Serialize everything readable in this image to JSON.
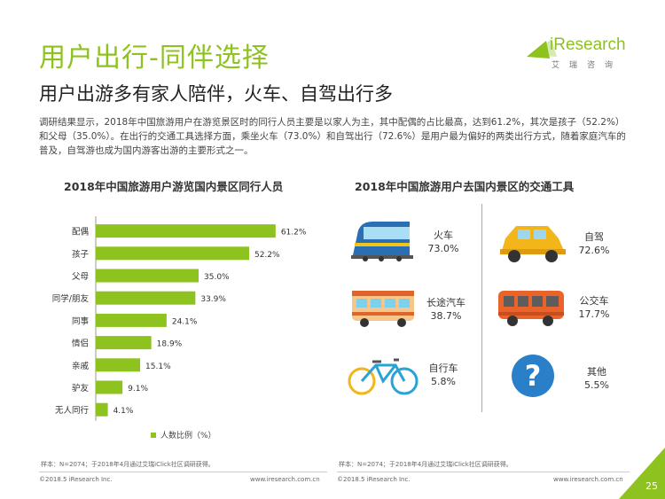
{
  "page": {
    "title": "用户出行-同伴选择",
    "subtitle": "用户出游多有家人陪伴，火车、自驾出行多",
    "intro": "调研结果显示，2018年中国旅游用户在游览景区时的同行人员主要是以家人为主，其中配偶的占比最高，达到61.2%，其次是孩子（52.2%）和父母（35.0%）。在出行的交通工具选择方面，乘坐火车（73.0%）和自驾出行（72.6%）是用户最为偏好的两类出行方式，随着家庭汽车的普及，自驾游也成为国内游客出游的主要形式之一。",
    "page_number": "25"
  },
  "logo": {
    "word": "iResearch",
    "sub": "艾瑞咨询"
  },
  "charts": {
    "left_title": "2018年中国旅游用户游览国内景区同行人员",
    "right_title": "2018年中国旅游用户去国内景区的交通工具",
    "legend_label": "人数比例（%）"
  },
  "chart_data": [
    {
      "type": "bar",
      "orientation": "horizontal",
      "title": "2018年中国旅游用户游览国内景区同行人员",
      "categories": [
        "配偶",
        "孩子",
        "父母",
        "同学/朋友",
        "同事",
        "情侣",
        "亲戚",
        "驴友",
        "无人同行"
      ],
      "values": [
        61.2,
        52.2,
        35.0,
        33.9,
        24.1,
        18.9,
        15.1,
        9.1,
        4.1
      ],
      "value_labels": [
        "61.2%",
        "52.2%",
        "35.0%",
        "33.9%",
        "24.1%",
        "18.9%",
        "15.1%",
        "9.1%",
        "4.1%"
      ],
      "series": [
        {
          "name": "人数比例（%）",
          "values": [
            61.2,
            52.2,
            35.0,
            33.9,
            24.1,
            18.9,
            15.1,
            9.1,
            4.1
          ]
        }
      ],
      "xlim": [
        0,
        70
      ],
      "grid": false,
      "legend": "bottom",
      "color": "#8dc21f"
    },
    {
      "type": "table",
      "title": "2018年中国旅游用户去国内景区的交通工具",
      "rows": [
        {
          "label": "火车",
          "value": "73.0%",
          "icon": "train-icon"
        },
        {
          "label": "自驾",
          "value": "72.6%",
          "icon": "car-icon"
        },
        {
          "label": "长途汽车",
          "value": "38.7%",
          "icon": "coach-icon"
        },
        {
          "label": "公交车",
          "value": "17.7%",
          "icon": "bus-icon"
        },
        {
          "label": "自行车",
          "value": "5.8%",
          "icon": "bicycle-icon"
        },
        {
          "label": "其他",
          "value": "5.5%",
          "icon": "question-icon"
        }
      ]
    }
  ],
  "footer": {
    "note_left": "样本：N=2074；于2018年4月通过艾瑞iClick社区调研获得。",
    "note_right": "样本：N=2074；于2018年4月通过艾瑞iClick社区调研获得。",
    "copyright_left": "©2018.5 iResearch Inc.",
    "url_left": "www.iresearch.com.cn",
    "copyright_right": "©2018.5 iResearch Inc.",
    "url_right": "www.iresearch.com.cn"
  },
  "colors": {
    "accent": "#8dc21f",
    "text": "#333333"
  }
}
